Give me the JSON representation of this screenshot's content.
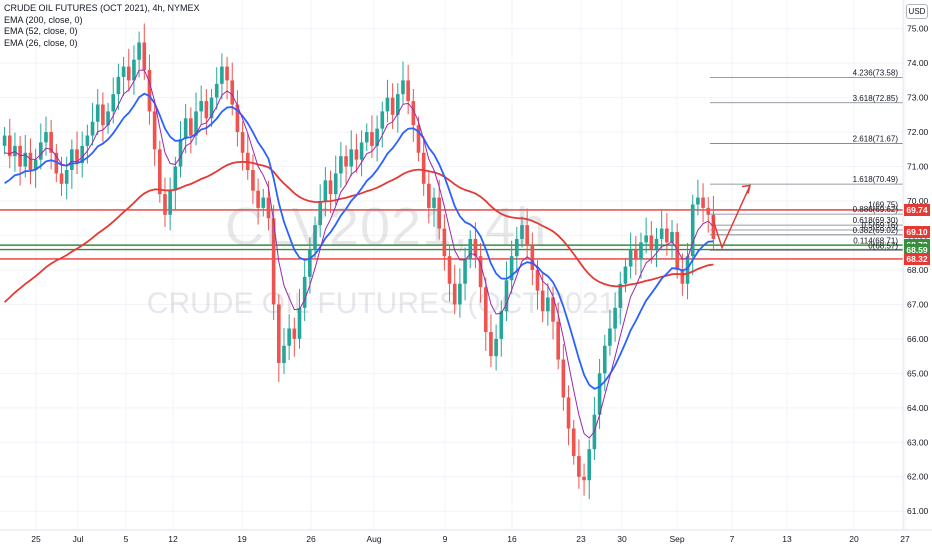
{
  "legend": {
    "title": "CRUDE OIL FUTURES (OCT 2021), 4h, NYMEX",
    "ema200": "EMA (200, close, 0)",
    "ema52": "EMA (52, close, 0)",
    "ema26": "EMA (26, close, 0)"
  },
  "currency": "USD",
  "watermark": {
    "symbol": "CLV2021, 4h",
    "description": "CRUDE OIL FUTURES (OCT 2021)"
  },
  "colors": {
    "up": "#26a69a",
    "down": "#ef5350",
    "ema200": "#e53935",
    "ema52": "#2962ff",
    "ema26": "#9c27b0",
    "support_red": "#e53935",
    "support_green": "#388e3c",
    "fib_line": "#787b86",
    "arrow": "#e53935"
  },
  "price_axis": {
    "ticks": [
      "75.00",
      "74.00",
      "73.00",
      "72.00",
      "71.00",
      "70.00",
      "69.00",
      "68.00",
      "67.00",
      "66.00",
      "65.00",
      "64.00",
      "63.00",
      "62.00",
      "61.00"
    ]
  },
  "price_tags": [
    {
      "value": "69.74",
      "color": "#e53935"
    },
    {
      "value": "69.10",
      "color": "#e53935"
    },
    {
      "value": "68.72",
      "color": "#388e3c"
    },
    {
      "value": "68.59",
      "color": "#388e3c"
    },
    {
      "value": "68.32",
      "color": "#e53935"
    }
  ],
  "time_axis": {
    "labels": [
      "25",
      "Jul",
      "5",
      "12",
      "19",
      "26",
      "Aug",
      "9",
      "16",
      "23",
      "30",
      "Sep",
      "7",
      "13",
      "20",
      "27"
    ]
  },
  "fib_levels": [
    {
      "label": "4.236(73.58)",
      "price": 73.58
    },
    {
      "label": "3.618(72.85)",
      "price": 72.85
    },
    {
      "label": "2.618(71.67)",
      "price": 71.67
    },
    {
      "label": "1.618(70.49)",
      "price": 70.49
    },
    {
      "label": "1(69.75)",
      "price": 69.75
    },
    {
      "label": "0.886(69.62)",
      "price": 69.62
    },
    {
      "label": "0.618(69.30)",
      "price": 69.3
    },
    {
      "label": "0.5(69.16)",
      "price": 69.16
    },
    {
      "label": "0.382(69.02)",
      "price": 69.02
    },
    {
      "label": "0.114(68.71)",
      "price": 68.71
    },
    {
      "label": "0(68.57)",
      "price": 68.57
    }
  ],
  "horizontal_levels": [
    {
      "price": 69.74,
      "color": "red"
    },
    {
      "price": 68.72,
      "color": "green"
    },
    {
      "price": 68.59,
      "color": "green"
    },
    {
      "price": 68.32,
      "color": "red"
    }
  ],
  "chart_data": {
    "type": "candlestick",
    "ylim": [
      60.6,
      75.6
    ],
    "closes": [
      71.9,
      71.3,
      71.6,
      71.0,
      71.4,
      70.9,
      71.2,
      71.7,
      72.0,
      71.4,
      70.8,
      70.5,
      70.9,
      71.5,
      71.1,
      71.6,
      71.9,
      72.3,
      72.8,
      72.2,
      72.6,
      73.1,
      73.6,
      73.9,
      73.5,
      74.1,
      74.6,
      73.8,
      72.6,
      71.5,
      70.2,
      69.6,
      70.3,
      71.0,
      71.8,
      72.4,
      71.9,
      72.6,
      72.9,
      72.4,
      73.0,
      73.4,
      73.9,
      73.5,
      72.8,
      72.0,
      71.4,
      70.9,
      70.3,
      69.8,
      70.1,
      69.5,
      67.0,
      65.3,
      65.8,
      66.3,
      66.0,
      66.9,
      67.8,
      68.6,
      69.3,
      70.0,
      70.6,
      70.2,
      70.8,
      71.3,
      71.0,
      71.5,
      71.2,
      71.7,
      72.0,
      71.6,
      72.1,
      72.6,
      73.0,
      72.5,
      73.1,
      73.5,
      72.9,
      72.2,
      71.4,
      70.5,
      69.8,
      70.1,
      69.2,
      68.4,
      67.6,
      67.0,
      67.6,
      68.3,
      68.9,
      68.4,
      67.5,
      66.2,
      65.5,
      66.0,
      66.8,
      67.7,
      68.4,
      68.9,
      69.3,
      68.7,
      68.0,
      67.4,
      66.8,
      67.2,
      66.5,
      65.4,
      64.3,
      63.4,
      62.6,
      62.0,
      61.9,
      62.8,
      63.8,
      65.0,
      65.8,
      66.3,
      66.9,
      67.6,
      68.1,
      68.6,
      68.3,
      68.8,
      69.0,
      68.6,
      68.9,
      69.2,
      68.8,
      69.1,
      68.0,
      67.6,
      68.4,
      69.9,
      70.1,
      69.8,
      69.6,
      68.9
    ]
  }
}
